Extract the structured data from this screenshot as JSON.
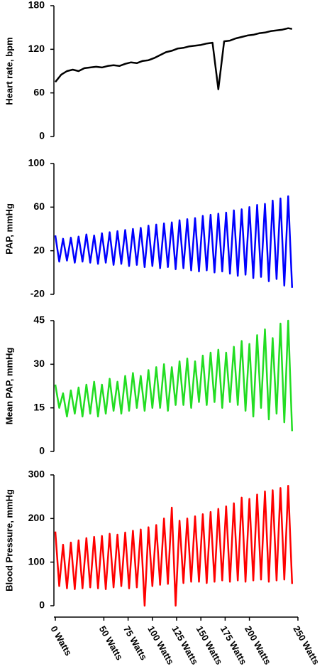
{
  "chart_data": [
    {
      "type": "line",
      "y_label": "Heart rate, bpm",
      "color": "#000000",
      "ylim": [
        0,
        180
      ],
      "yticks": [
        0,
        60,
        120,
        180
      ],
      "xlim": [
        0,
        250
      ],
      "x": [
        0,
        6,
        12,
        18,
        24,
        30,
        36,
        42,
        48,
        54,
        60,
        66,
        72,
        78,
        84,
        90,
        96,
        102,
        108,
        114,
        120,
        126,
        132,
        138,
        144,
        150,
        156,
        162,
        168,
        174,
        180,
        186,
        192,
        198,
        204,
        210,
        216,
        222,
        228,
        234,
        240,
        244
      ],
      "values": [
        75,
        85,
        90,
        92,
        90,
        94,
        95,
        96,
        95,
        97,
        98,
        97,
        100,
        102,
        101,
        104,
        105,
        108,
        112,
        116,
        118,
        121,
        122,
        124,
        125,
        126,
        128,
        129,
        65,
        131,
        132,
        135,
        137,
        139,
        140,
        142,
        143,
        145,
        146,
        147,
        149,
        148
      ]
    },
    {
      "type": "line",
      "y_label": "PAP, mmHg",
      "color": "#0000ff",
      "ylim": [
        -20,
        100
      ],
      "yticks": [
        -20,
        20,
        60,
        100
      ],
      "xlim": [
        0,
        250
      ],
      "x": [
        0,
        4,
        8,
        12,
        16,
        20,
        24,
        28,
        32,
        36,
        40,
        44,
        48,
        52,
        56,
        60,
        64,
        68,
        72,
        76,
        80,
        84,
        88,
        92,
        96,
        100,
        104,
        108,
        112,
        116,
        120,
        124,
        128,
        132,
        136,
        140,
        144,
        148,
        152,
        156,
        160,
        164,
        168,
        172,
        176,
        180,
        184,
        188,
        192,
        196,
        200,
        204,
        208,
        212,
        216,
        220,
        224,
        228,
        232,
        236,
        240,
        244
      ],
      "values": [
        34,
        10,
        31,
        11,
        32,
        9,
        33,
        10,
        35,
        9,
        34,
        8,
        36,
        9,
        37,
        7,
        38,
        8,
        39,
        6,
        40,
        7,
        41,
        5,
        43,
        6,
        44,
        4,
        45,
        5,
        46,
        3,
        48,
        4,
        49,
        2,
        50,
        1,
        52,
        2,
        53,
        0,
        54,
        1,
        55,
        -1,
        57,
        -3,
        58,
        -2,
        60,
        -5,
        62,
        -4,
        63,
        -8,
        66,
        -6,
        68,
        -12,
        70,
        -14
      ]
    },
    {
      "type": "line",
      "y_label": "Mean PAP, mmHg",
      "color": "#22dd22",
      "ylim": [
        0,
        45
      ],
      "yticks": [
        0,
        15,
        30,
        45
      ],
      "xlim": [
        0,
        250
      ],
      "x": [
        0,
        4,
        8,
        12,
        16,
        20,
        24,
        28,
        32,
        36,
        40,
        44,
        48,
        52,
        56,
        60,
        64,
        68,
        72,
        76,
        80,
        84,
        88,
        92,
        96,
        100,
        104,
        108,
        112,
        116,
        120,
        124,
        128,
        132,
        136,
        140,
        144,
        148,
        152,
        156,
        160,
        164,
        168,
        172,
        176,
        180,
        184,
        188,
        192,
        196,
        200,
        204,
        208,
        212,
        216,
        220,
        224,
        228,
        232,
        236,
        240,
        244
      ],
      "values": [
        23,
        15,
        20,
        12,
        21,
        13,
        22,
        12,
        23,
        13,
        24,
        12,
        23,
        13,
        25,
        14,
        24,
        13,
        26,
        14,
        27,
        15,
        26,
        14,
        28,
        15,
        29,
        15,
        30,
        14,
        29,
        16,
        31,
        16,
        32,
        15,
        31,
        17,
        33,
        16,
        34,
        17,
        35,
        15,
        34,
        17,
        36,
        16,
        38,
        14,
        37,
        12,
        40,
        15,
        42,
        11,
        39,
        13,
        44,
        10,
        45,
        7
      ]
    },
    {
      "type": "line",
      "y_label": "Blood Pressure, mmHg",
      "color": "#ff0000",
      "ylim": [
        0,
        300
      ],
      "yticks": [
        0,
        100,
        200,
        300
      ],
      "xlim": [
        0,
        250
      ],
      "xticks": [
        {
          "value": 0,
          "label": "0 Watts"
        },
        {
          "value": 50,
          "label": "50 Watts"
        },
        {
          "value": 75,
          "label": "75 Watts"
        },
        {
          "value": 100,
          "label": "100 Watts"
        },
        {
          "value": 125,
          "label": "125 Watts"
        },
        {
          "value": 150,
          "label": "150 Watts"
        },
        {
          "value": 175,
          "label": "175 Watts"
        },
        {
          "value": 200,
          "label": "200 Watts"
        },
        {
          "value": 250,
          "label": "250 Watts"
        }
      ],
      "x": [
        0,
        4,
        8,
        12,
        16,
        20,
        24,
        28,
        32,
        36,
        40,
        44,
        48,
        52,
        56,
        60,
        64,
        68,
        72,
        76,
        80,
        84,
        88,
        92,
        96,
        100,
        104,
        108,
        112,
        116,
        120,
        124,
        128,
        132,
        136,
        140,
        144,
        148,
        152,
        156,
        160,
        164,
        168,
        172,
        176,
        180,
        184,
        188,
        192,
        196,
        200,
        204,
        208,
        212,
        216,
        220,
        224,
        228,
        232,
        236,
        240,
        244
      ],
      "values": [
        170,
        45,
        140,
        40,
        145,
        38,
        150,
        40,
        155,
        42,
        158,
        40,
        160,
        38,
        165,
        42,
        163,
        45,
        168,
        40,
        172,
        42,
        175,
        0,
        180,
        45,
        185,
        48,
        200,
        50,
        225,
        0,
        195,
        52,
        200,
        55,
        205,
        55,
        210,
        52,
        215,
        55,
        222,
        58,
        228,
        55,
        235,
        58,
        248,
        55,
        245,
        58,
        255,
        60,
        262,
        55,
        265,
        58,
        270,
        60,
        275,
        50
      ]
    }
  ]
}
